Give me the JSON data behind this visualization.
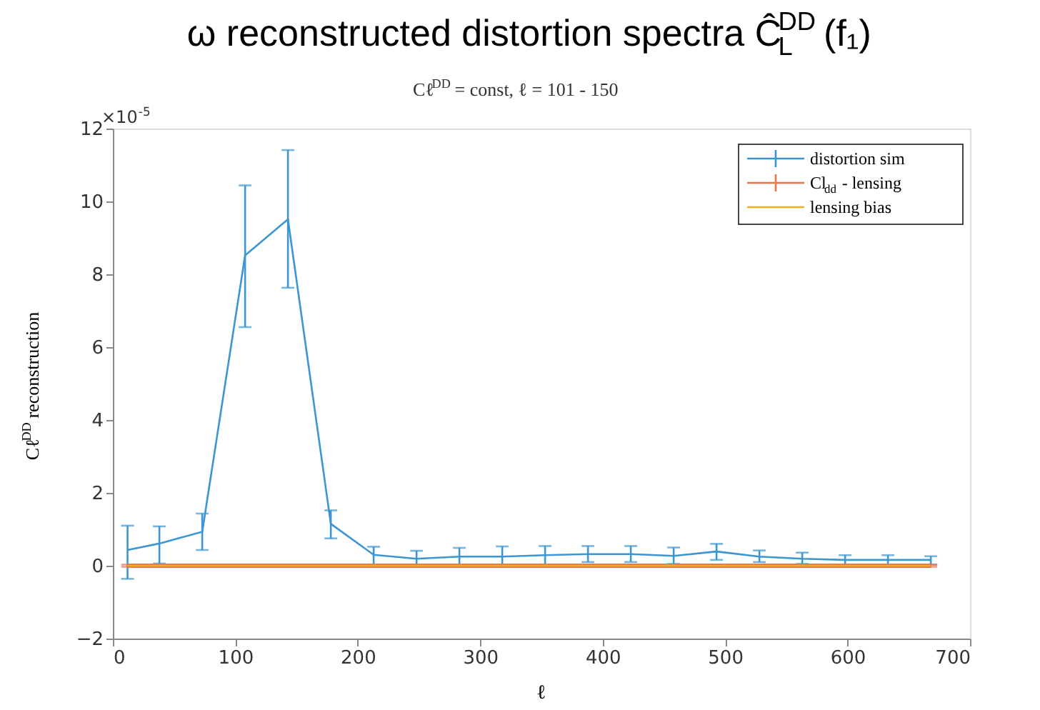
{
  "chart_data": {
    "type": "line",
    "title": "ω reconstructed distortion spectra Ĉ$^{DD}$$_{L}$ (f₁)",
    "subtitle": "Cℓ$^{DD}$ = const, ℓ = 101 - 150",
    "xlabel": "ℓ",
    "ylabel": "Cℓ$^{DD}$ reconstruction",
    "annotations": [
      "×10$^{-5}$"
    ],
    "x": [
      12,
      38,
      73,
      108,
      143,
      178,
      213,
      248,
      283,
      318,
      353,
      388,
      423,
      458,
      493,
      528,
      563,
      598,
      633,
      668
    ],
    "series": [
      {
        "name": "distortion sim",
        "color": "#3c96d2",
        "values": [
          0.43,
          0.61,
          0.93,
          8.52,
          9.51,
          1.15,
          0.3,
          0.19,
          0.25,
          0.25,
          0.29,
          0.32,
          0.32,
          0.27,
          0.39,
          0.25,
          0.19,
          0.16,
          0.16,
          0.16
        ],
        "errors": [
          [
            -0.36,
            1.1
          ],
          [
            0.06,
            1.08
          ],
          [
            0.43,
            1.43
          ],
          [
            6.55,
            10.44
          ],
          [
            7.63,
            11.41
          ],
          [
            0.75,
            1.52
          ],
          [
            0.0,
            0.52
          ],
          [
            0.0,
            0.41
          ],
          [
            0.0,
            0.49
          ],
          [
            0.0,
            0.53
          ],
          [
            0.01,
            0.54
          ],
          [
            0.1,
            0.54
          ],
          [
            0.1,
            0.54
          ],
          [
            0.05,
            0.5
          ],
          [
            0.16,
            0.6
          ],
          [
            0.1,
            0.42
          ],
          [
            0.05,
            0.36
          ],
          [
            0.03,
            0.29
          ],
          [
            0.03,
            0.29
          ],
          [
            0.03,
            0.26
          ]
        ]
      },
      {
        "name": "Cl$_{dd}$ - lensing",
        "color": "#e8744a",
        "values": [
          0,
          0,
          0,
          0,
          0,
          0,
          0,
          0,
          0,
          0,
          0,
          0,
          0,
          0,
          0,
          0,
          0,
          0,
          0,
          0
        ],
        "errors": [
          0.03,
          0.03,
          0.03,
          0.03,
          0.03,
          0.03,
          0.03,
          0.03,
          0.03,
          0.03,
          0.03,
          0.03,
          0.03,
          0.03,
          0.03,
          0.03,
          0.03,
          0.03,
          0.03,
          0.03
        ]
      },
      {
        "name": "lensing bias",
        "color": "#edb120",
        "values": [
          0,
          0,
          0,
          0,
          0,
          0,
          0,
          0,
          0,
          0,
          0,
          0,
          0,
          0,
          0,
          0,
          0,
          0,
          0,
          0
        ]
      }
    ],
    "xlim": [
      0,
      700
    ],
    "xticks": [
      0,
      100,
      200,
      300,
      400,
      500,
      600,
      700
    ],
    "ylim": [
      -2,
      12
    ],
    "yticks": [
      -2,
      0,
      2,
      4,
      6,
      8,
      10,
      12
    ],
    "legend": "top right",
    "grid": false,
    "marker": "none",
    "line_style": "solid"
  }
}
